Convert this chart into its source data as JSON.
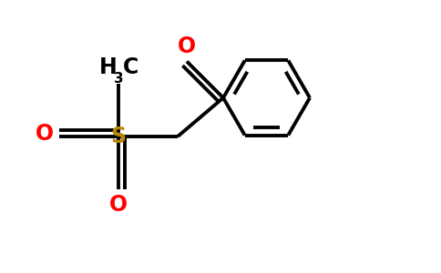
{
  "bg_color": "#ffffff",
  "line_color": "#000000",
  "red_color": "#ff0000",
  "sulfur_color": "#b8860b",
  "line_width": 2.8,
  "fig_width": 4.84,
  "fig_height": 3.0,
  "dpi": 100,
  "xlim": [
    0,
    9.68
  ],
  "ylim": [
    0,
    6.0
  ]
}
